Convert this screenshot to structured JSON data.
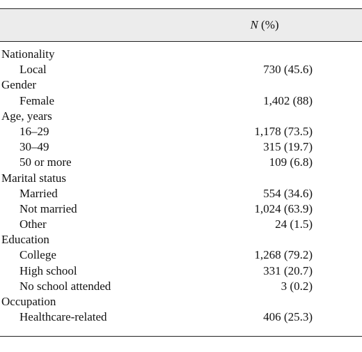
{
  "header": {
    "col_n": "N",
    "col_pct": " (%)"
  },
  "rows": [
    {
      "type": "group",
      "label": "Nationality",
      "value": ""
    },
    {
      "type": "sub",
      "label": "Local",
      "value": "730 (45.6)"
    },
    {
      "type": "group",
      "label": "Gender",
      "value": ""
    },
    {
      "type": "sub",
      "label": "Female",
      "value": "1,402 (88)"
    },
    {
      "type": "group",
      "label": "Age, years",
      "value": ""
    },
    {
      "type": "sub",
      "label": "16–29",
      "value": "1,178 (73.5)"
    },
    {
      "type": "sub",
      "label": "30–49",
      "value": "315 (19.7)"
    },
    {
      "type": "sub",
      "label": "50 or more",
      "value": "109 (6.8)"
    },
    {
      "type": "group",
      "label": "Marital status",
      "value": ""
    },
    {
      "type": "sub",
      "label": "Married",
      "value": "554 (34.6)"
    },
    {
      "type": "sub",
      "label": "Not married",
      "value": "1,024 (63.9)"
    },
    {
      "type": "sub",
      "label": "Other",
      "value": "24 (1.5)"
    },
    {
      "type": "group",
      "label": "Education",
      "value": ""
    },
    {
      "type": "sub",
      "label": "College",
      "value": "1,268 (79.2)"
    },
    {
      "type": "sub",
      "label": "High school",
      "value": "331 (20.7)"
    },
    {
      "type": "sub",
      "label": "No school attended",
      "value": "3 (0.2)"
    },
    {
      "type": "group",
      "label": "Occupation",
      "value": ""
    },
    {
      "type": "sub",
      "label": "Healthcare-related",
      "value": "406 (25.3)"
    }
  ]
}
